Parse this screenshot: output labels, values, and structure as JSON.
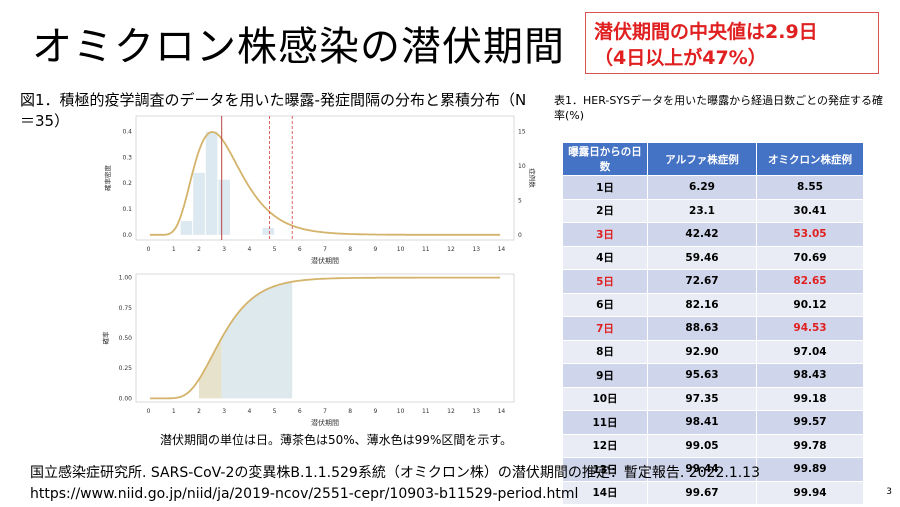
{
  "title": "オミクロン株感染の潜伏期間",
  "callout": {
    "line1": "潜伏期間の中央値は2.9日",
    "line2": "（4日以上が47%）"
  },
  "figure_caption": "図1．積極的疫学調査のデータを用いた曝露-発症間隔の分布と累積分布（N＝35）",
  "figure_note": "潜伏期間の単位は日。薄茶色は50%、薄水色は99%区間を示す。",
  "table_caption": "表1．HER-SYSデータを用いた曝露から経過日数ごとの発症する確率(%)",
  "table": {
    "headers": [
      "曝露日からの日数",
      "アルファ株症例",
      "オミクロン株症例"
    ],
    "rows": [
      {
        "day": "1日",
        "alpha": "6.29",
        "omicron": "8.55",
        "highlight": false
      },
      {
        "day": "2日",
        "alpha": "23.1",
        "omicron": "30.41",
        "highlight": false
      },
      {
        "day": "3日",
        "alpha": "42.42",
        "omicron": "53.05",
        "highlight": true
      },
      {
        "day": "4日",
        "alpha": "59.46",
        "omicron": "70.69",
        "highlight": false
      },
      {
        "day": "5日",
        "alpha": "72.67",
        "omicron": "82.65",
        "highlight": true
      },
      {
        "day": "6日",
        "alpha": "82.16",
        "omicron": "90.12",
        "highlight": false
      },
      {
        "day": "7日",
        "alpha": "88.63",
        "omicron": "94.53",
        "highlight": true
      },
      {
        "day": "8日",
        "alpha": "92.90",
        "omicron": "97.04",
        "highlight": false
      },
      {
        "day": "9日",
        "alpha": "95.63",
        "omicron": "98.43",
        "highlight": false
      },
      {
        "day": "10日",
        "alpha": "97.35",
        "omicron": "99.18",
        "highlight": false
      },
      {
        "day": "11日",
        "alpha": "98.41",
        "omicron": "99.57",
        "highlight": false
      },
      {
        "day": "12日",
        "alpha": "99.05",
        "omicron": "99.78",
        "highlight": false
      },
      {
        "day": "13日",
        "alpha": "99.44",
        "omicron": "99.89",
        "highlight": false
      },
      {
        "day": "14日",
        "alpha": "99.67",
        "omicron": "99.94",
        "highlight": false
      }
    ]
  },
  "source": {
    "line1": "国立感染症研究所. SARS-CoV-2の変異株B.1.1.529系統（オミクロン株）の潜伏期間の推定：暫定報告. 2022.1.13",
    "line2": "https://www.niid.go.jp/niid/ja/2019-ncov/2551-cepr/10903-b11529-period.html"
  },
  "page_number": "3",
  "colors": {
    "accent_red": "#e02020",
    "table_header": "#4472c4",
    "row_odd": "#cfd5ea",
    "row_even": "#e9ebf5",
    "curve": "#d4b36a",
    "bar": "#dce9f0",
    "band50": "#e6e2cc",
    "band99": "#dde9ec"
  },
  "chart_data": [
    {
      "type": "bar",
      "xlabel": "潜伏期間",
      "ylabel_left": "確率密度",
      "ylabel_right": "症例数",
      "x_ticks": [
        0,
        1,
        2,
        3,
        4,
        5,
        6,
        7,
        8,
        9,
        10,
        11,
        12,
        13,
        14
      ],
      "xlim": [
        -0.5,
        14.5
      ],
      "ylim_left": [
        -0.02,
        0.46
      ],
      "yticks_left": [
        0.0,
        0.1,
        0.2,
        0.3,
        0.4
      ],
      "ylim_right": [
        -0.75,
        17.25
      ],
      "yticks_right": [
        0,
        5,
        10,
        15
      ],
      "bars": [
        {
          "x": 1.5,
          "count": 2
        },
        {
          "x": 2.0,
          "count": 9
        },
        {
          "x": 2.5,
          "count": 15
        },
        {
          "x": 3.0,
          "count": 8
        },
        {
          "x": 4.75,
          "count": 1
        }
      ],
      "density_curve": {
        "type": "lognormal",
        "median": 2.9,
        "sdlog": 0.37
      },
      "median_line": 2.9,
      "interval_lines": [
        4.8,
        5.7
      ]
    },
    {
      "type": "line",
      "xlabel": "潜伏期間",
      "ylabel": "確率",
      "x_ticks": [
        0,
        1,
        2,
        3,
        4,
        5,
        6,
        7,
        8,
        9,
        10,
        11,
        12,
        13,
        14
      ],
      "xlim": [
        -0.5,
        14.5
      ],
      "ylim": [
        -0.03,
        1.03
      ],
      "yticks": [
        0.0,
        0.25,
        0.5,
        0.75,
        1.0
      ],
      "cumulative_curve": {
        "type": "lognormal",
        "median": 2.9,
        "sdlog": 0.37
      },
      "band_50": [
        2.0,
        2.9
      ],
      "band_99": [
        2.9,
        5.7
      ]
    }
  ]
}
